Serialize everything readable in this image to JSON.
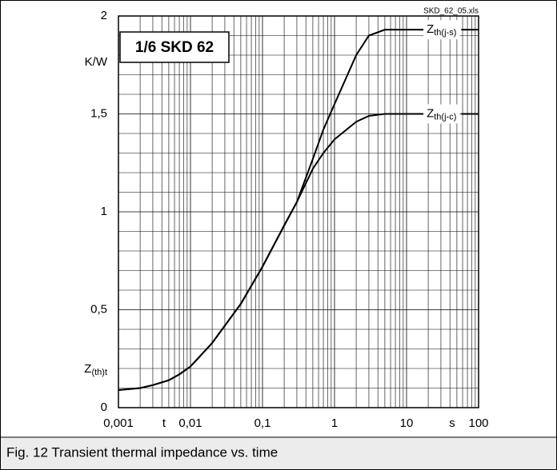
{
  "chart_data": {
    "type": "line",
    "title": "1/6 SKD 62",
    "file_label": "SKD_62_05.xls",
    "caption": "Fig. 12 Transient thermal impedance vs. time",
    "x_label": "t",
    "x_unit": "s",
    "y_label": "Z(th)t",
    "y_unit": "K/W",
    "log_x": true,
    "grid": true,
    "minor_grid": true,
    "xlim": [
      0.001,
      100
    ],
    "ylim": [
      0,
      2
    ],
    "xticks": [
      {
        "value": 0.001,
        "label": "0,001"
      },
      {
        "value": 0.01,
        "label": "0,01"
      },
      {
        "value": 0.1,
        "label": "0,1"
      },
      1,
      10,
      100
    ],
    "yticks": [
      0,
      {
        "value": 0.5,
        "label": "0,5"
      },
      1,
      {
        "value": 1.5,
        "label": "1,5"
      },
      2
    ],
    "x": [
      0.001,
      0.002,
      0.003,
      0.005,
      0.007,
      0.01,
      0.02,
      0.05,
      0.1,
      0.2,
      0.3,
      0.5,
      0.7,
      1,
      2,
      3,
      5,
      10,
      20
    ],
    "series": [
      {
        "name": "Zth(j-s)",
        "color": "#000000",
        "values": [
          0.09,
          0.1,
          0.115,
          0.14,
          0.17,
          0.21,
          0.33,
          0.53,
          0.72,
          0.93,
          1.05,
          1.27,
          1.42,
          1.55,
          1.8,
          1.9,
          1.93,
          1.93,
          1.93
        ]
      },
      {
        "name": "Zth(j-c)",
        "color": "#000000",
        "values": [
          0.09,
          0.1,
          0.115,
          0.14,
          0.17,
          0.21,
          0.33,
          0.53,
          0.72,
          0.93,
          1.05,
          1.22,
          1.3,
          1.37,
          1.46,
          1.49,
          1.5,
          1.5,
          1.5
        ]
      }
    ]
  }
}
